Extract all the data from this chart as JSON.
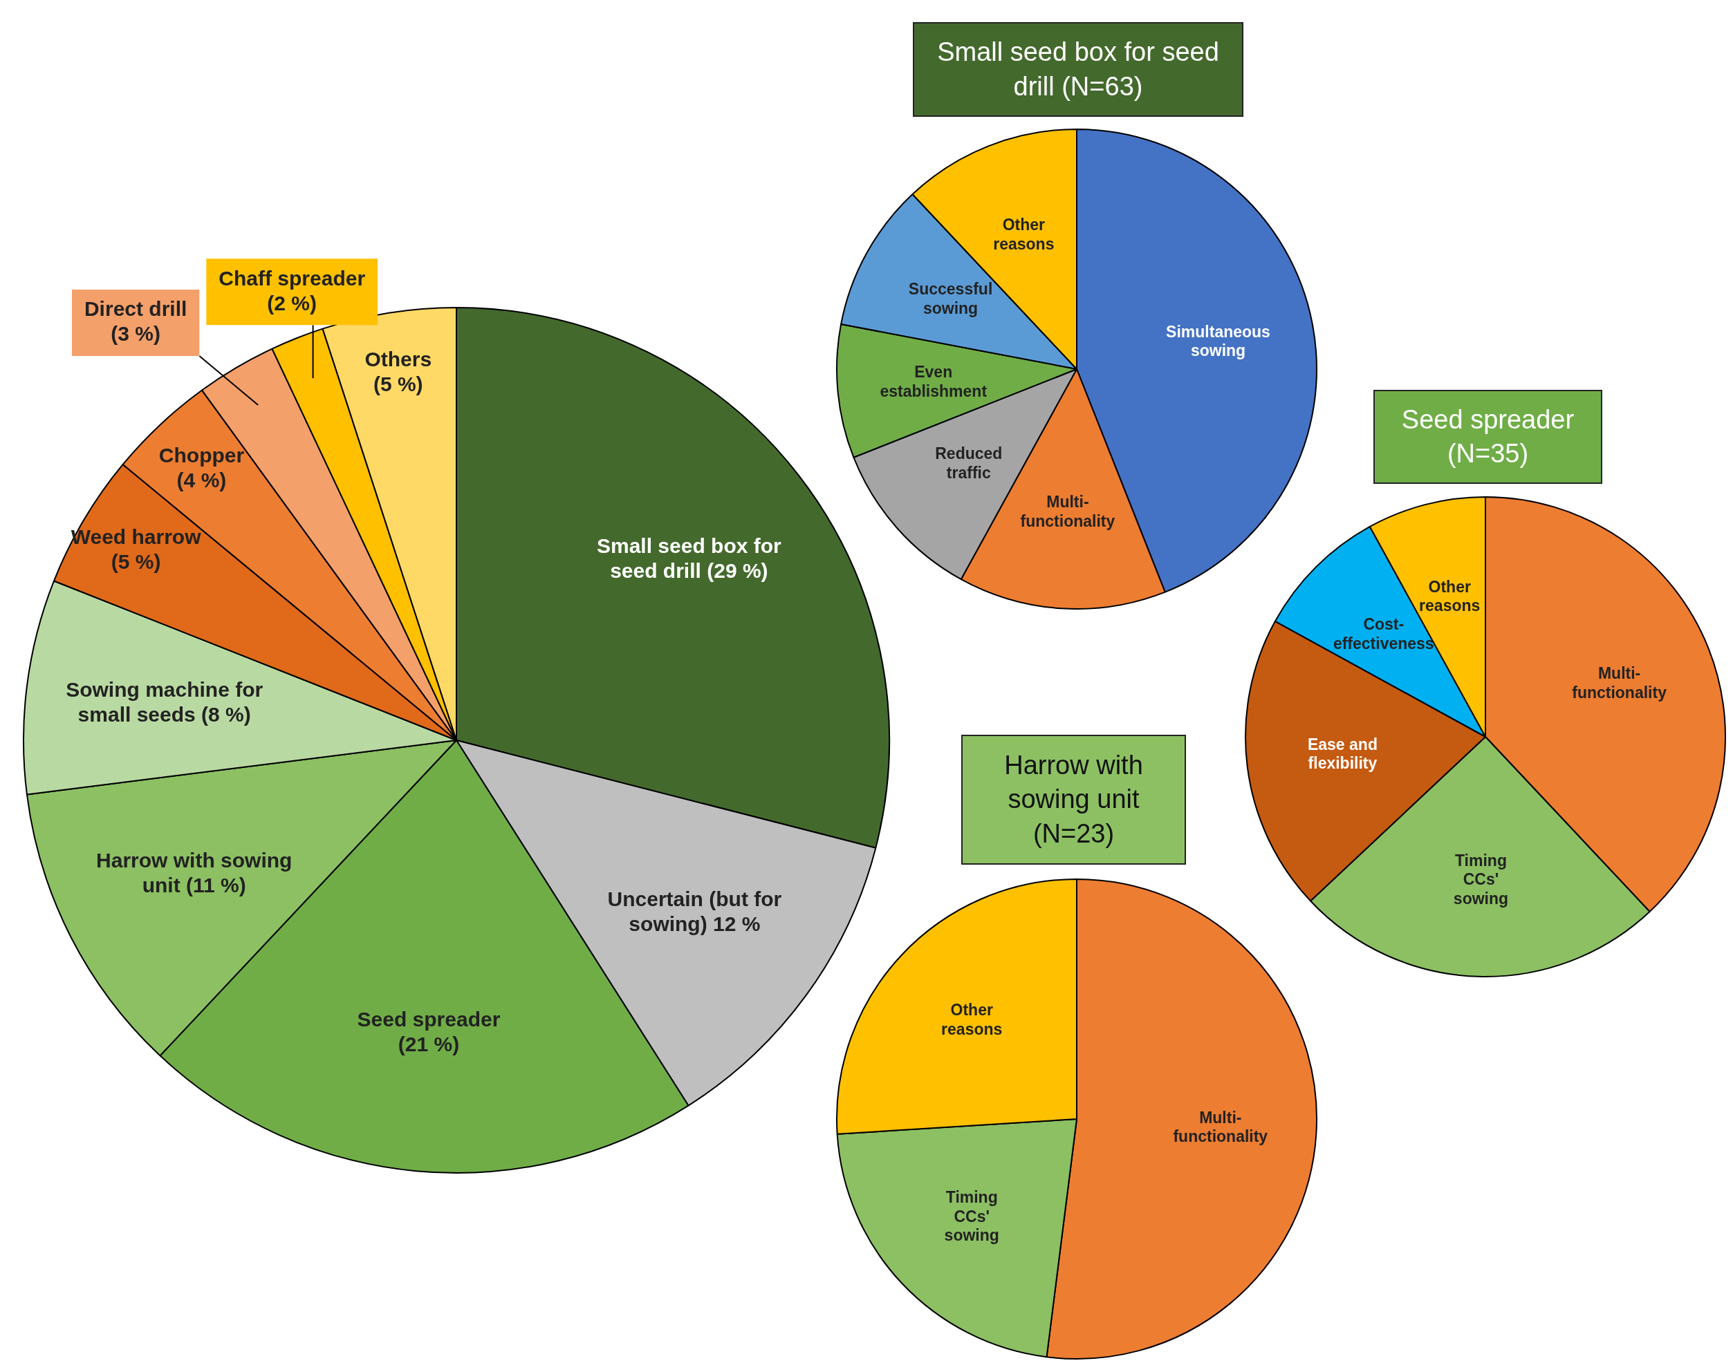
{
  "chart_data": [
    {
      "type": "pie",
      "categories": [
        "Small seed box for seed drill",
        "Uncertain (but for sowing)",
        "Seed spreader",
        "Harrow with sowing unit",
        "Sowing machine for small seeds",
        "Weed harrow",
        "Chopper",
        "Direct drill",
        "Chaff spreader",
        "Others"
      ],
      "values": [
        29,
        12,
        21,
        11,
        8,
        5,
        4,
        3,
        2,
        5
      ],
      "value_labels": [
        "(29 %)",
        "12 %",
        "(21 %)",
        "(11 %)",
        "(8 %)",
        "(5 %)",
        "(4 %)",
        "(3 %)",
        "(2 %)",
        "(5 %)"
      ],
      "colors": [
        "#44692d",
        "#bfbfbf",
        "#70ad47",
        "#8cc063",
        "#b9d9a2",
        "#e0691a",
        "#ed7d31",
        "#f4a06a",
        "#ffc000",
        "#ffd966"
      ]
    },
    {
      "type": "pie",
      "title": "Small seed box for seed drill (N=63)",
      "categories": [
        "Simultaneous sowing",
        "Multi-functionality",
        "Reduced traffic",
        "Even establishment",
        "Successful sowing",
        "Other reasons"
      ],
      "values": [
        44,
        14,
        11,
        9,
        10,
        12
      ],
      "colors": [
        "#4472c4",
        "#ed7d31",
        "#a5a5a5",
        "#70ad47",
        "#5b9bd5",
        "#ffc000"
      ]
    },
    {
      "type": "pie",
      "title": "Seed spreader (N=35)",
      "categories": [
        "Multi-functionality",
        "Timing CCs' sowing",
        "Ease and flexibility",
        "Cost-effectiveness",
        "Other reasons"
      ],
      "values": [
        38,
        25,
        20,
        9,
        8
      ],
      "colors": [
        "#ed7d31",
        "#8cc063",
        "#c55a11",
        "#00b0f0",
        "#ffc000"
      ]
    },
    {
      "type": "pie",
      "title": "Harrow with sowing unit (N=23)",
      "categories": [
        "Multi-functionality",
        "Timing CCs' sowing",
        "Other reasons"
      ],
      "values": [
        52,
        22,
        26
      ],
      "colors": [
        "#ed7d31",
        "#8cc063",
        "#ffc000"
      ]
    }
  ]
}
